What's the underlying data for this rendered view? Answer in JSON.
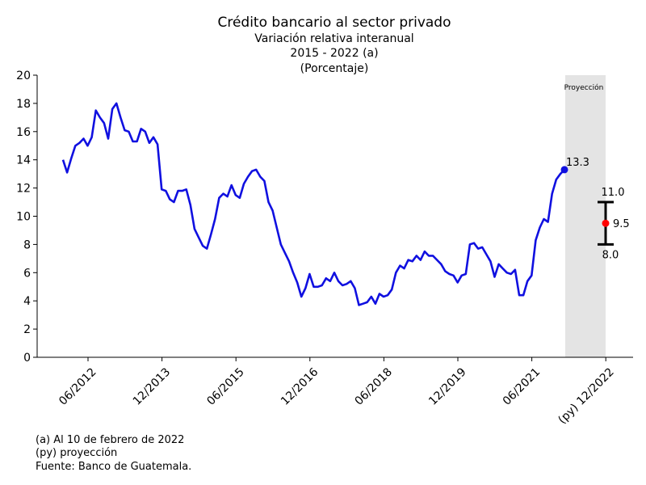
{
  "chart_data": {
    "type": "line",
    "title": "Crédito bancario al sector privado",
    "subtitle_lines": [
      "Variación relativa interanual",
      "2015 - 2022 (a)",
      "(Porcentaje)"
    ],
    "xlabel": "",
    "ylabel": "",
    "ylim": [
      0,
      20
    ],
    "yticks": [
      0,
      2,
      4,
      6,
      8,
      10,
      12,
      14,
      16,
      18,
      20
    ],
    "x_tick_labels": [
      "06/2012",
      "12/2013",
      "06/2015",
      "12/2016",
      "06/2018",
      "12/2019",
      "06/2021",
      "(py) 12/2022"
    ],
    "grid": false,
    "projection_label": "Proyección",
    "series": [
      {
        "color": "#1010e0",
        "values": [
          14.0,
          13.1,
          14.1,
          15.0,
          15.2,
          15.5,
          15.0,
          15.6,
          17.5,
          17.0,
          16.6,
          15.5,
          17.6,
          18.0,
          17.0,
          16.1,
          16.0,
          15.3,
          15.3,
          16.2,
          16.0,
          15.2,
          15.6,
          15.1,
          11.9,
          11.8,
          11.2,
          11.0,
          11.8,
          11.8,
          11.9,
          10.8,
          9.1,
          8.5,
          7.9,
          7.7,
          8.7,
          9.8,
          11.3,
          11.6,
          11.4,
          12.2,
          11.5,
          11.3,
          12.3,
          12.8,
          13.2,
          13.3,
          12.8,
          12.5,
          11.0,
          10.4,
          9.2,
          8.0,
          7.4,
          6.8,
          6.0,
          5.3,
          4.3,
          4.9,
          5.9,
          5.0,
          5.0,
          5.1,
          5.6,
          5.4,
          6.0,
          5.4,
          5.1,
          5.2,
          5.4,
          4.9,
          3.7,
          3.8,
          3.9,
          4.3,
          3.8,
          4.5,
          4.3,
          4.4,
          4.8,
          6.0,
          6.5,
          6.3,
          6.9,
          6.8,
          7.2,
          6.9,
          7.5,
          7.2,
          7.2,
          6.9,
          6.6,
          6.1,
          5.9,
          5.8,
          5.3,
          5.8,
          5.9,
          8.0,
          8.1,
          7.7,
          7.8,
          7.3,
          6.8,
          5.7,
          6.6,
          6.3,
          6.0,
          5.9,
          6.2,
          4.4,
          4.4,
          5.4,
          5.8,
          8.3,
          9.2,
          9.8,
          9.6,
          11.6,
          12.6,
          13.0,
          13.3
        ]
      }
    ],
    "last_point_label": "13.3",
    "projection": {
      "center": 9.5,
      "low": 8.0,
      "high": 11.0,
      "center_label": "9.5",
      "low_label": "8.0",
      "high_label": "11.0",
      "bar_color": "#000000",
      "point_color": "#ff0000"
    }
  },
  "footnotes": [
    "(a) Al 10 de febrero de 2022",
    "(py) proyección",
    "Fuente: Banco de Guatemala."
  ]
}
